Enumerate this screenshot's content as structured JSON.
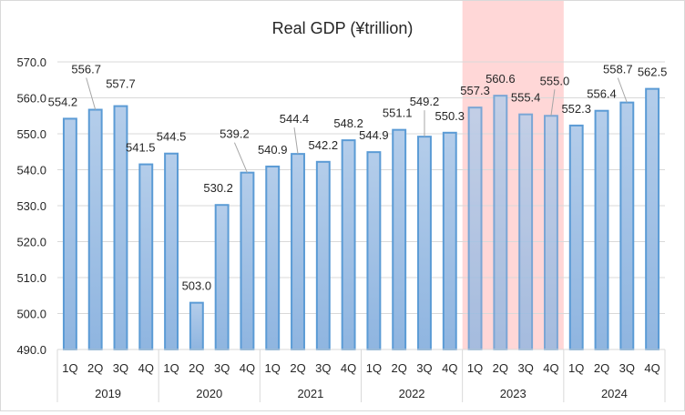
{
  "chart_data": {
    "type": "bar",
    "title": "Real GDP (¥trillion)",
    "xlabel": "",
    "ylabel": "",
    "ylim": [
      490,
      570
    ],
    "yticks": [
      490,
      500,
      510,
      520,
      530,
      540,
      550,
      560,
      570
    ],
    "ytick_labels": [
      "490.0",
      "500.0",
      "510.0",
      "520.0",
      "530.0",
      "540.0",
      "550.0",
      "560.0",
      "570.0"
    ],
    "grid": true,
    "legend": "none",
    "groups": [
      {
        "label": "2019",
        "categories": [
          "1Q",
          "2Q",
          "3Q",
          "4Q"
        ]
      },
      {
        "label": "2020",
        "categories": [
          "1Q",
          "2Q",
          "3Q",
          "4Q"
        ]
      },
      {
        "label": "2021",
        "categories": [
          "1Q",
          "2Q",
          "3Q",
          "4Q"
        ]
      },
      {
        "label": "2022",
        "categories": [
          "1Q",
          "2Q",
          "3Q",
          "4Q"
        ]
      },
      {
        "label": "2023",
        "categories": [
          "1Q",
          "2Q",
          "3Q",
          "4Q"
        ]
      },
      {
        "label": "2024",
        "categories": [
          "1Q",
          "2Q",
          "3Q",
          "4Q"
        ]
      }
    ],
    "series": [
      {
        "name": "Real GDP",
        "values": [
          554.2,
          556.7,
          557.7,
          541.5,
          544.5,
          503.0,
          530.2,
          539.2,
          540.9,
          544.4,
          542.2,
          548.2,
          544.9,
          551.1,
          549.2,
          550.3,
          557.3,
          560.6,
          555.4,
          555.0,
          552.3,
          556.4,
          558.7,
          562.5
        ],
        "labels": [
          "554.2",
          "556.7",
          "557.7",
          "541.5",
          "544.5",
          "503.0",
          "530.2",
          "539.2",
          "540.9",
          "544.4",
          "542.2",
          "548.2",
          "544.9",
          "551.1",
          "549.2",
          "550.3",
          "557.3",
          "560.6",
          "555.4",
          "555.0",
          "552.3",
          "556.4",
          "558.7",
          "562.5"
        ]
      }
    ],
    "highlight": {
      "group": "2023",
      "color": "#ffd7d7"
    },
    "colors": {
      "bar_fill_top": "#b4cdea",
      "bar_fill_bottom": "#8fb5e0",
      "bar_stroke": "#5b9bd5",
      "gridline": "#d9d9d9",
      "text": "#262626"
    }
  }
}
